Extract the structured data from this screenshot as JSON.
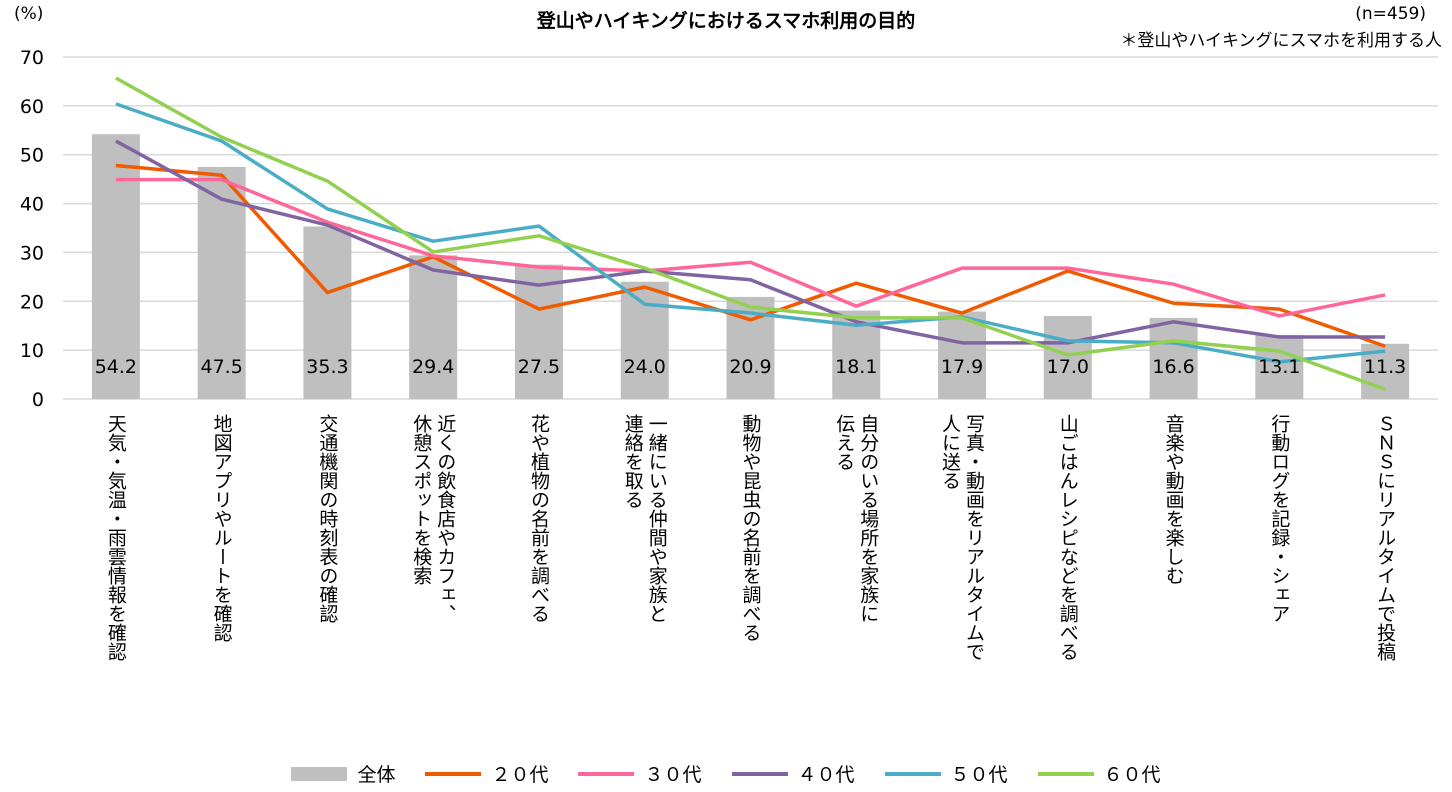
{
  "chart_data": {
    "type": "bar+line",
    "title": "登山やハイキングにおけるスマホ利用の目的",
    "unit_label": "(%)",
    "sample_note": "(n=459)",
    "footnote": "＊登山やハイキングにスマホを利用する人",
    "ylim": [
      0,
      70
    ],
    "yticks": [
      0,
      10,
      20,
      30,
      40,
      50,
      60,
      70
    ],
    "grid": true,
    "legend_position": "bottom",
    "categories": [
      "天気・気温・雨雲情報を確認",
      "地図アプリやルートを確認",
      "交通機関の時刻表の確認",
      "近くの飲食店やカフェ、\n休憩スポットを検索",
      "花や植物の名前を調べる",
      "一緒にいる仲間や家族と\n連絡を取る",
      "動物や昆虫の名前を調べる",
      "自分のいる場所を家族に\n伝える",
      "写真・動画をリアルタイムで\n人に送る",
      "山ごはんレシピなどを調べる",
      "音楽や動画を楽しむ",
      "行動ログを記録・シェア",
      "ＳＮＳにリアルタイムで投稿"
    ],
    "bar_series": {
      "name": "全体",
      "color": "#bfbfbf",
      "values": [
        54.2,
        47.5,
        35.3,
        29.4,
        27.5,
        24.0,
        20.9,
        18.1,
        17.9,
        17.0,
        16.6,
        13.1,
        11.3
      ],
      "labels": [
        "54.2",
        "47.5",
        "35.3",
        "29.4",
        "27.5",
        "24.0",
        "20.9",
        "18.1",
        "17.9",
        "17.0",
        "16.6",
        "13.1",
        "11.3"
      ]
    },
    "line_series": [
      {
        "name": "２０代",
        "color": "#f05a00",
        "values": [
          47.8,
          45.8,
          21.8,
          29.1,
          18.4,
          22.9,
          16.2,
          23.7,
          17.6,
          26.2,
          19.6,
          18.4,
          10.8
        ]
      },
      {
        "name": "３０代",
        "color": "#ff6699",
        "values": [
          44.9,
          44.9,
          36.2,
          29.3,
          27.0,
          26.2,
          28.0,
          19.0,
          26.8,
          26.8,
          23.5,
          17.0,
          21.3
        ]
      },
      {
        "name": "４０代",
        "color": "#8064a2",
        "values": [
          52.8,
          40.9,
          35.6,
          26.4,
          23.3,
          26.2,
          24.4,
          15.8,
          11.5,
          11.5,
          15.8,
          12.7,
          12.7
        ]
      },
      {
        "name": "５０代",
        "color": "#4bacc6",
        "values": [
          60.4,
          52.8,
          38.9,
          32.3,
          35.4,
          19.4,
          17.6,
          15.1,
          16.8,
          11.9,
          11.5,
          7.6,
          9.8
        ]
      },
      {
        "name": "６０代",
        "color": "#92d050",
        "values": [
          65.7,
          53.6,
          44.6,
          30.1,
          33.4,
          26.8,
          18.8,
          16.6,
          16.6,
          9.0,
          11.9,
          9.8,
          2.0
        ]
      }
    ]
  }
}
